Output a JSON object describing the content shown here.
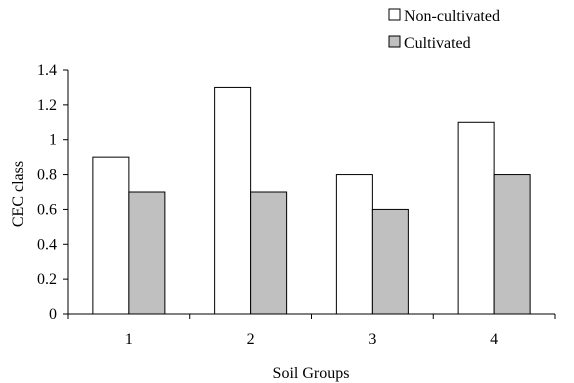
{
  "chart_data": {
    "type": "bar",
    "categories": [
      "1",
      "2",
      "3",
      "4"
    ],
    "series": [
      {
        "name": "Non-cultivated",
        "values": [
          0.9,
          1.3,
          0.8,
          1.1
        ],
        "color": "#ffffff"
      },
      {
        "name": "Cultivated",
        "values": [
          0.7,
          0.7,
          0.6,
          0.8
        ],
        "color": "#c0c0c0"
      }
    ],
    "title": "",
    "xlabel": "Soil Groups",
    "ylabel": "CEC class",
    "ylim": [
      0,
      1.4
    ],
    "yticks": [
      "0",
      "0.2",
      "0.4",
      "0.6",
      "0.8",
      "1",
      "1.2",
      "1.4"
    ],
    "grid": false,
    "legend_position": "top-right"
  }
}
